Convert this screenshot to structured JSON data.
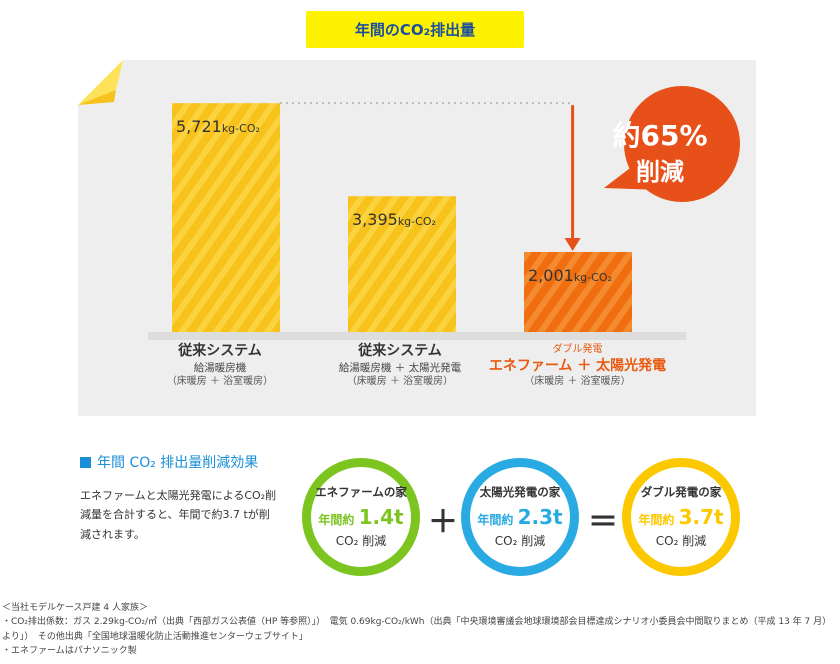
{
  "header": {
    "title": "年間のCO₂排出量"
  },
  "chart_data": {
    "type": "bar",
    "categories": [
      "従来システム",
      "従来システム",
      "エネファーム＋太陽光発電"
    ],
    "values": [
      5721,
      3395,
      2001
    ],
    "value_labels": [
      "5,721",
      "3,395",
      "2,001"
    ],
    "unit": "kg-CO₂",
    "ylim": [
      0,
      6000
    ],
    "colors": {
      "conventional": "#f7c21b",
      "conventional_light": "#fde25a",
      "double": "#f06e0f",
      "double_light": "#f8a24a",
      "reduction": "#e8501a"
    },
    "category_details": [
      {
        "tag": "",
        "main": "従来システム",
        "sub": "給湯暖房機",
        "sub2": "（床暖房 ＋ 浴室暖房）"
      },
      {
        "tag": "",
        "main": "従来システム",
        "sub": "給湯暖房機 ＋ 太陽光発電",
        "sub2": "（床暖房 ＋ 浴室暖房）"
      },
      {
        "tag": "ダブル発電",
        "main": "エネファーム ＋ 太陽光発電",
        "sub": "",
        "sub2": "（床暖房 ＋ 浴室暖房）"
      }
    ],
    "annotation": {
      "line1": "約65%",
      "line2": "削減"
    }
  },
  "effect": {
    "heading": "年間 CO₂ 排出量削減効果",
    "description": "エネファームと太陽光発電によるCO₂削減量を合計すると、年間で約3.7 tが削減されます。",
    "plus": "＋",
    "equals": "＝",
    "rings": [
      {
        "title": "エネファームの家",
        "prefix": "年間約",
        "value": "1.4",
        "unit": "t",
        "suffix": "CO₂ 削減",
        "color": "#7cc520"
      },
      {
        "title": "太陽光発電の家",
        "prefix": "年間約",
        "value": "2.3",
        "unit": "t",
        "suffix": "CO₂ 削減",
        "color": "#29aae2"
      },
      {
        "title": "ダブル発電の家",
        "prefix": "年間約",
        "value": "3.7",
        "unit": "t",
        "suffix": "CO₂ 削減",
        "color": "#fcc800"
      }
    ]
  },
  "notes": [
    "＜当社モデルケース戸建 4 人家族＞",
    "・CO₂排出係数：ガス 2.29kg-CO₂/㎥（出典「西部ガス公表値（HP 等参照）」）　電気 0.69kg-CO₂/kWh（出典「中央環境審議会地球環境部会目標達成シナリオ小委員会中間取りまとめ（平成 13 年 7 月）より」）　その他出典「全国地球温暖化防止活動推進センターウェブサイト」",
    "・エネファームはパナソニック製"
  ]
}
